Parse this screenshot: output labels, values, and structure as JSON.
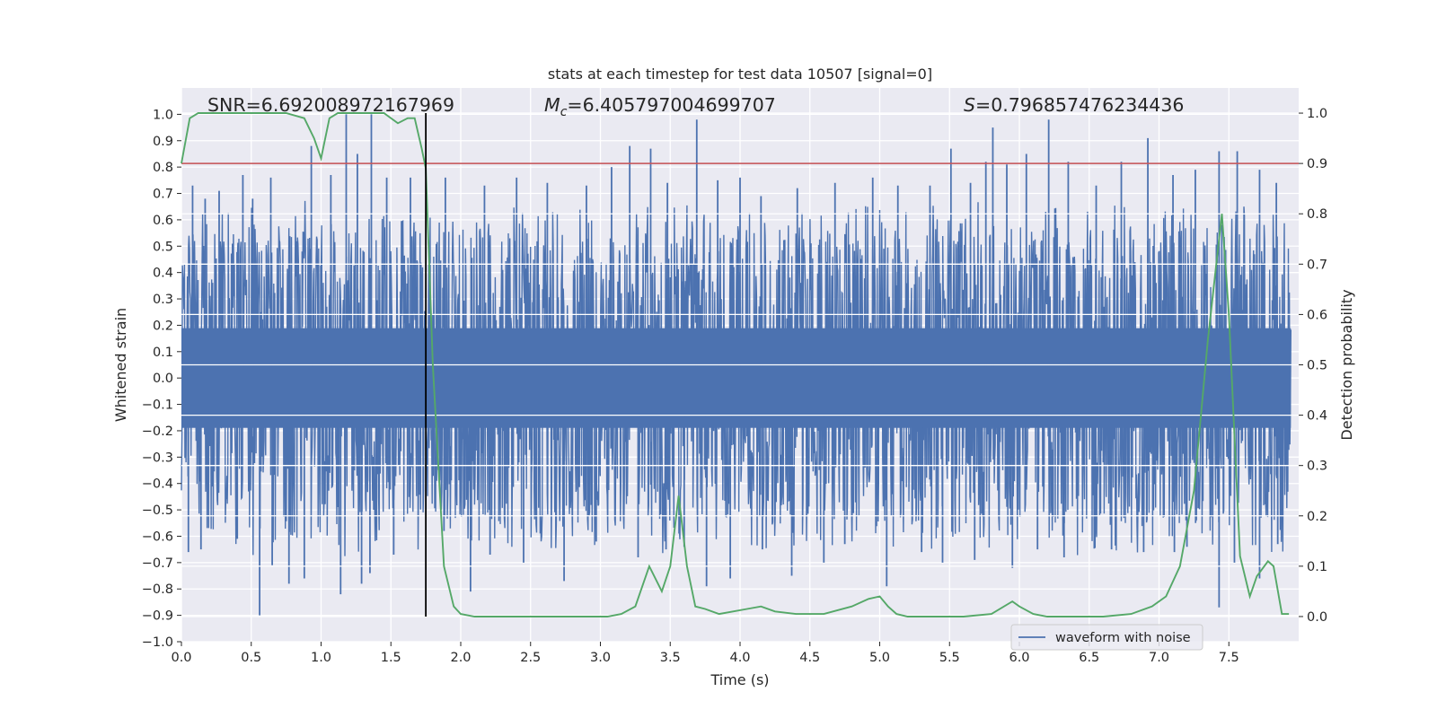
{
  "chart_data": {
    "type": "line",
    "title": "stats at each timestep for test data 10507 [signal=0]",
    "xlabel": "Time (s)",
    "ylabel_left": "Whitened strain",
    "ylabel_right": "Detection probability",
    "xlim": [
      0.0,
      8.0
    ],
    "ylim_left": [
      -1.0,
      1.1
    ],
    "ylim_right": [
      -0.05,
      1.05
    ],
    "x_ticks": [
      0.0,
      0.5,
      1.0,
      1.5,
      2.0,
      2.5,
      3.0,
      3.5,
      4.0,
      4.5,
      5.0,
      5.5,
      6.0,
      6.5,
      7.0,
      7.5
    ],
    "x_tick_labels": [
      "0.0",
      "0.5",
      "1.0",
      "1.5",
      "2.0",
      "2.5",
      "3.0",
      "3.5",
      "4.0",
      "4.5",
      "5.0",
      "5.5",
      "6.0",
      "6.5",
      "7.0",
      "7.5"
    ],
    "y_left_ticks": [
      -1.0,
      -0.9,
      -0.8,
      -0.7,
      -0.6,
      -0.5,
      -0.4,
      -0.3,
      -0.2,
      -0.1,
      0.0,
      0.1,
      0.2,
      0.3,
      0.4,
      0.5,
      0.6,
      0.7,
      0.8,
      0.9,
      1.0
    ],
    "y_left_tick_labels": [
      "−1.0",
      "−0.9",
      "−0.8",
      "−0.7",
      "−0.6",
      "−0.5",
      "−0.4",
      "−0.3",
      "−0.2",
      "−0.1",
      "0.0",
      "0.1",
      "0.2",
      "0.3",
      "0.4",
      "0.5",
      "0.6",
      "0.7",
      "0.8",
      "0.9",
      "1.0"
    ],
    "y_right_ticks": [
      0.0,
      0.1,
      0.2,
      0.3,
      0.4,
      0.5,
      0.6,
      0.7,
      0.8,
      0.9,
      1.0
    ],
    "y_right_tick_labels": [
      "0.0",
      "0.1",
      "0.2",
      "0.3",
      "0.4",
      "0.5",
      "0.6",
      "0.7",
      "0.8",
      "0.9",
      "1.0"
    ],
    "annotations": {
      "snr_prefix": "SNR=",
      "snr_value": "6.692008972167969",
      "mc_value": "6.405797004699707",
      "s_value": "0.796857476234436"
    },
    "threshold_line": {
      "axis": "right",
      "y": 0.9,
      "color": "#c44e52"
    },
    "marker_line": {
      "x": 1.75,
      "y_from_right": 0.0,
      "y_to_right": 1.0,
      "color": "#000000"
    },
    "series": [
      {
        "name": "waveform with noise",
        "axis": "left",
        "color": "#4c72b0",
        "kind": "noise",
        "typical_envelope": [
          -0.45,
          0.45
        ],
        "peaks": [
          {
            "x": 0.08,
            "y": 0.73
          },
          {
            "x": 0.17,
            "y": 0.68
          },
          {
            "x": 0.27,
            "y": 0.71
          },
          {
            "x": 0.44,
            "y": 0.77
          },
          {
            "x": 0.51,
            "y": 0.68
          },
          {
            "x": 0.64,
            "y": 0.76
          },
          {
            "x": 0.93,
            "y": 0.88
          },
          {
            "x": 1.07,
            "y": 0.77
          },
          {
            "x": 1.18,
            "y": 1.0
          },
          {
            "x": 1.26,
            "y": 0.85
          },
          {
            "x": 1.36,
            "y": 1.0
          },
          {
            "x": 1.47,
            "y": 0.76
          },
          {
            "x": 1.64,
            "y": 0.76
          },
          {
            "x": 1.89,
            "y": 0.76
          },
          {
            "x": 2.17,
            "y": 0.73
          },
          {
            "x": 2.4,
            "y": 0.76
          },
          {
            "x": 2.62,
            "y": 0.74
          },
          {
            "x": 2.9,
            "y": 0.73
          },
          {
            "x": 3.08,
            "y": 0.8
          },
          {
            "x": 3.21,
            "y": 0.88
          },
          {
            "x": 3.36,
            "y": 0.87
          },
          {
            "x": 3.48,
            "y": 0.74
          },
          {
            "x": 3.69,
            "y": 0.98
          },
          {
            "x": 3.84,
            "y": 0.75
          },
          {
            "x": 4.0,
            "y": 0.76
          },
          {
            "x": 4.15,
            "y": 0.69
          },
          {
            "x": 4.41,
            "y": 0.72
          },
          {
            "x": 4.68,
            "y": 0.74
          },
          {
            "x": 4.95,
            "y": 0.76
          },
          {
            "x": 5.13,
            "y": 0.73
          },
          {
            "x": 5.36,
            "y": 0.73
          },
          {
            "x": 5.51,
            "y": 0.87
          },
          {
            "x": 5.65,
            "y": 0.74
          },
          {
            "x": 5.76,
            "y": 0.82
          },
          {
            "x": 5.81,
            "y": 0.95
          },
          {
            "x": 5.91,
            "y": 0.81
          },
          {
            "x": 6.05,
            "y": 0.85
          },
          {
            "x": 6.21,
            "y": 0.98
          },
          {
            "x": 6.35,
            "y": 0.82
          },
          {
            "x": 6.55,
            "y": 0.73
          },
          {
            "x": 6.73,
            "y": 0.82
          },
          {
            "x": 6.92,
            "y": 0.91
          },
          {
            "x": 7.1,
            "y": 0.77
          },
          {
            "x": 7.26,
            "y": 0.79
          },
          {
            "x": 7.43,
            "y": 0.86
          },
          {
            "x": 7.56,
            "y": 0.86
          },
          {
            "x": 7.72,
            "y": 0.79
          },
          {
            "x": 7.84,
            "y": 0.74
          }
        ],
        "troughs": [
          {
            "x": 0.05,
            "y": -0.66
          },
          {
            "x": 0.14,
            "y": -0.65
          },
          {
            "x": 0.4,
            "y": -0.61
          },
          {
            "x": 0.56,
            "y": -0.9
          },
          {
            "x": 0.65,
            "y": -0.71
          },
          {
            "x": 0.77,
            "y": -0.78
          },
          {
            "x": 0.88,
            "y": -0.76
          },
          {
            "x": 1.14,
            "y": -0.82
          },
          {
            "x": 1.29,
            "y": -0.78
          },
          {
            "x": 1.35,
            "y": -0.74
          },
          {
            "x": 1.52,
            "y": -0.67
          },
          {
            "x": 1.88,
            "y": -0.58
          },
          {
            "x": 2.07,
            "y": -0.81
          },
          {
            "x": 2.21,
            "y": -0.67
          },
          {
            "x": 2.45,
            "y": -0.7
          },
          {
            "x": 2.74,
            "y": -0.77
          },
          {
            "x": 2.97,
            "y": -0.62
          },
          {
            "x": 3.27,
            "y": -0.68
          },
          {
            "x": 3.47,
            "y": -0.65
          },
          {
            "x": 3.6,
            "y": -0.64
          },
          {
            "x": 3.76,
            "y": -0.79
          },
          {
            "x": 3.93,
            "y": -0.76
          },
          {
            "x": 4.16,
            "y": -0.65
          },
          {
            "x": 4.37,
            "y": -0.75
          },
          {
            "x": 4.6,
            "y": -0.7
          },
          {
            "x": 4.75,
            "y": -0.63
          },
          {
            "x": 5.05,
            "y": -0.79
          },
          {
            "x": 5.3,
            "y": -0.66
          },
          {
            "x": 5.45,
            "y": -0.7
          },
          {
            "x": 5.68,
            "y": -0.69
          },
          {
            "x": 5.95,
            "y": -0.72
          },
          {
            "x": 6.13,
            "y": -0.65
          },
          {
            "x": 6.32,
            "y": -0.68
          },
          {
            "x": 6.66,
            "y": -0.65
          },
          {
            "x": 6.89,
            "y": -0.66
          },
          {
            "x": 7.11,
            "y": -0.66
          },
          {
            "x": 7.2,
            "y": -0.64
          },
          {
            "x": 7.43,
            "y": -0.87
          },
          {
            "x": 7.54,
            "y": -0.7
          },
          {
            "x": 7.72,
            "y": -0.76
          },
          {
            "x": 7.85,
            "y": -0.63
          }
        ]
      },
      {
        "name": "detection probability",
        "axis": "right",
        "color": "#55a868",
        "x": [
          0.0,
          0.06,
          0.12,
          0.2,
          0.3,
          0.45,
          0.6,
          0.75,
          0.88,
          0.95,
          1.0,
          1.06,
          1.12,
          1.2,
          1.3,
          1.45,
          1.55,
          1.62,
          1.67,
          1.72,
          1.75,
          1.8,
          1.88,
          1.95,
          2.0,
          2.1,
          2.3,
          2.5,
          2.6,
          2.7,
          2.9,
          3.05,
          3.15,
          3.25,
          3.35,
          3.44,
          3.5,
          3.56,
          3.62,
          3.68,
          3.75,
          3.85,
          3.95,
          4.05,
          4.15,
          4.25,
          4.4,
          4.6,
          4.8,
          4.92,
          5.0,
          5.06,
          5.12,
          5.2,
          5.4,
          5.6,
          5.8,
          5.95,
          6.0,
          6.1,
          6.2,
          6.4,
          6.6,
          6.8,
          6.95,
          7.05,
          7.15,
          7.25,
          7.35,
          7.45,
          7.5,
          7.55,
          7.58,
          7.65,
          7.7,
          7.78,
          7.82,
          7.88,
          7.93
        ],
        "values": [
          0.9,
          0.99,
          1.0,
          1.0,
          1.0,
          1.0,
          1.0,
          1.0,
          0.99,
          0.95,
          0.91,
          0.99,
          1.0,
          1.0,
          1.0,
          1.0,
          0.98,
          0.99,
          0.99,
          0.93,
          0.89,
          0.5,
          0.1,
          0.02,
          0.005,
          0.0,
          0.0,
          0.0,
          0.0,
          0.0,
          0.0,
          0.0,
          0.005,
          0.02,
          0.1,
          0.05,
          0.1,
          0.24,
          0.1,
          0.02,
          0.015,
          0.005,
          0.01,
          0.015,
          0.02,
          0.01,
          0.005,
          0.005,
          0.02,
          0.035,
          0.04,
          0.02,
          0.005,
          0.0,
          0.0,
          0.0,
          0.005,
          0.03,
          0.02,
          0.005,
          0.0,
          0.0,
          0.0,
          0.005,
          0.02,
          0.04,
          0.1,
          0.25,
          0.55,
          0.8,
          0.6,
          0.3,
          0.12,
          0.04,
          0.08,
          0.11,
          0.1,
          0.005,
          0.005
        ]
      }
    ],
    "legend": {
      "placement": "lower-right",
      "entries": [
        "waveform with noise"
      ]
    }
  }
}
